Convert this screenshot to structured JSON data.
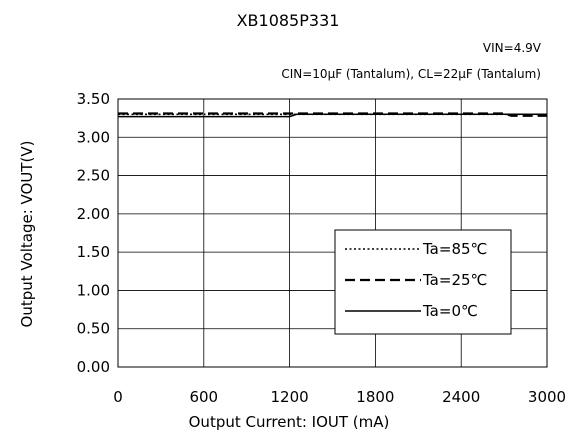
{
  "chart_data": {
    "type": "line",
    "title": "XB1085P331",
    "conditions": [
      "VIN=4.9V",
      "CIN=10μF (Tantalum), CL=22μF (Tantalum)"
    ],
    "xlabel": "Output Current: IOUT (mA)",
    "ylabel": "Output Voltage: VOUT(V)",
    "xlim": [
      0,
      3000
    ],
    "ylim": [
      0,
      3.5
    ],
    "xticks": [
      "0",
      "600",
      "1200",
      "1800",
      "2400",
      "3000"
    ],
    "yticks": [
      "0.00",
      "0.50",
      "1.00",
      "1.50",
      "2.00",
      "2.50",
      "3.00",
      "3.50"
    ],
    "grid": true,
    "legend_position": "bottom-right",
    "series": [
      {
        "name": "Ta=85℃",
        "style": "dotted",
        "x": [
          0,
          300,
          600,
          900,
          1200,
          1500,
          1800,
          2100,
          2400,
          2700,
          3000
        ],
        "y": [
          3.3,
          3.3,
          3.3,
          3.3,
          3.3,
          3.3,
          3.3,
          3.3,
          3.3,
          3.3,
          3.3
        ]
      },
      {
        "name": "Ta=25℃",
        "style": "dashed",
        "x": [
          0,
          300,
          600,
          900,
          1200,
          1500,
          1800,
          2100,
          2400,
          2700,
          2750,
          3000
        ],
        "y": [
          3.31,
          3.31,
          3.31,
          3.31,
          3.31,
          3.31,
          3.31,
          3.31,
          3.31,
          3.31,
          3.28,
          3.28
        ]
      },
      {
        "name": "Ta=0℃",
        "style": "solid",
        "x": [
          0,
          300,
          600,
          900,
          1200,
          1250,
          1500,
          1800,
          2100,
          2400,
          2700,
          3000
        ],
        "y": [
          3.27,
          3.27,
          3.27,
          3.27,
          3.27,
          3.3,
          3.3,
          3.3,
          3.3,
          3.3,
          3.3,
          3.3
        ]
      }
    ]
  }
}
